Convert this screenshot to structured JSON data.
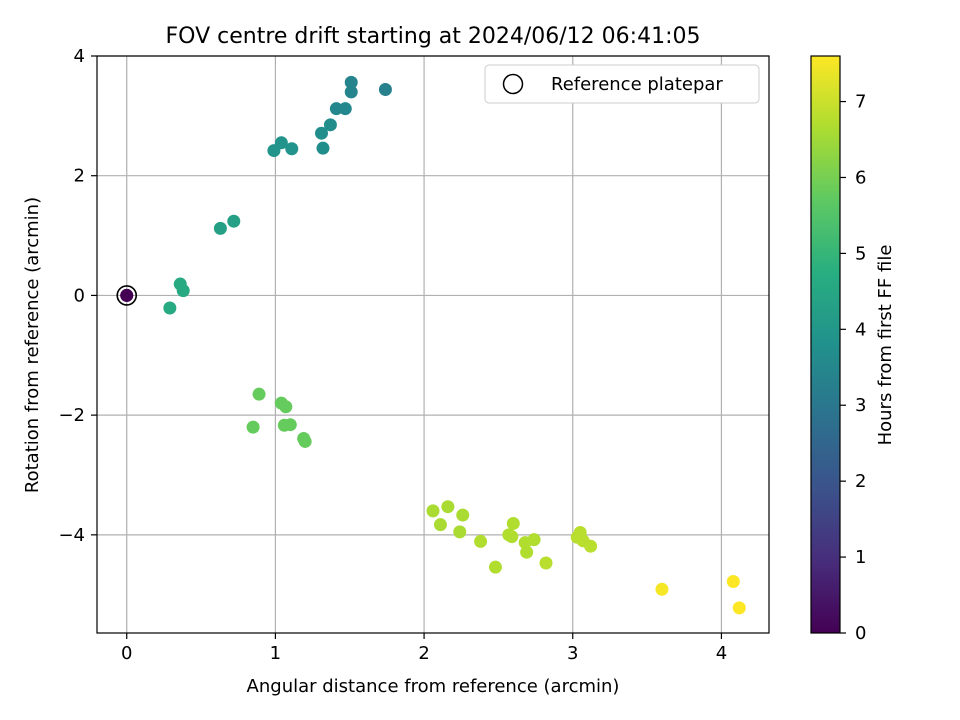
{
  "chart_data": {
    "type": "scatter",
    "title": "FOV centre drift starting at 2024/06/12 06:41:05",
    "xlabel": "Angular distance from reference (arcmin)",
    "ylabel": "Rotation from reference (arcmin)",
    "xlim": [
      -0.2,
      4.32
    ],
    "ylim": [
      -5.64,
      4.0
    ],
    "xticks": [
      0,
      1,
      2,
      3,
      4
    ],
    "yticks": [
      -4,
      -2,
      0,
      2,
      4
    ],
    "xtick_labels": [
      "0",
      "1",
      "2",
      "3",
      "4"
    ],
    "ytick_labels": [
      "−4",
      "−2",
      "0",
      "2",
      "4"
    ],
    "grid": true,
    "legend": {
      "placement": "top-right",
      "entries": [
        "Reference platepar"
      ]
    },
    "reference_point": {
      "x": 0,
      "y": 0,
      "hours": 0
    },
    "colorbar": {
      "label": "Hours from first FF file",
      "range": [
        0,
        7.6
      ],
      "ticks": [
        0,
        1,
        2,
        3,
        4,
        5,
        6,
        7
      ],
      "tick_labels": [
        "0",
        "1",
        "2",
        "3",
        "4",
        "5",
        "6",
        "7"
      ],
      "colormap": "viridis"
    },
    "series": [
      {
        "points": [
          {
            "x": 0.0,
            "y": 0.0,
            "h": 0.0
          },
          {
            "x": 0.29,
            "y": -0.21,
            "h": 4.6
          },
          {
            "x": 0.36,
            "y": 0.19,
            "h": 4.6
          },
          {
            "x": 0.38,
            "y": 0.08,
            "h": 4.6
          },
          {
            "x": 0.63,
            "y": 1.12,
            "h": 4.3
          },
          {
            "x": 0.72,
            "y": 1.24,
            "h": 4.3
          },
          {
            "x": 0.99,
            "y": 2.42,
            "h": 3.9
          },
          {
            "x": 1.04,
            "y": 2.55,
            "h": 3.9
          },
          {
            "x": 1.11,
            "y": 2.45,
            "h": 3.9
          },
          {
            "x": 1.31,
            "y": 2.71,
            "h": 3.7
          },
          {
            "x": 1.32,
            "y": 2.46,
            "h": 3.7
          },
          {
            "x": 1.37,
            "y": 2.85,
            "h": 3.7
          },
          {
            "x": 1.41,
            "y": 3.12,
            "h": 3.5
          },
          {
            "x": 1.47,
            "y": 3.12,
            "h": 3.5
          },
          {
            "x": 1.51,
            "y": 3.56,
            "h": 3.4
          },
          {
            "x": 1.51,
            "y": 3.4,
            "h": 3.4
          },
          {
            "x": 1.74,
            "y": 3.44,
            "h": 3.3
          },
          {
            "x": 0.89,
            "y": -1.65,
            "h": 5.8
          },
          {
            "x": 0.85,
            "y": -2.2,
            "h": 5.8
          },
          {
            "x": 1.04,
            "y": -1.8,
            "h": 5.8
          },
          {
            "x": 1.06,
            "y": -2.17,
            "h": 5.8
          },
          {
            "x": 1.07,
            "y": -1.86,
            "h": 5.8
          },
          {
            "x": 1.1,
            "y": -2.16,
            "h": 5.8
          },
          {
            "x": 1.19,
            "y": -2.39,
            "h": 5.8
          },
          {
            "x": 1.2,
            "y": -2.44,
            "h": 5.8
          },
          {
            "x": 2.06,
            "y": -3.6,
            "h": 6.6
          },
          {
            "x": 2.11,
            "y": -3.83,
            "h": 6.6
          },
          {
            "x": 2.16,
            "y": -3.53,
            "h": 6.6
          },
          {
            "x": 2.24,
            "y": -3.95,
            "h": 6.6
          },
          {
            "x": 2.26,
            "y": -3.67,
            "h": 6.6
          },
          {
            "x": 2.38,
            "y": -4.11,
            "h": 6.7
          },
          {
            "x": 2.48,
            "y": -4.54,
            "h": 6.7
          },
          {
            "x": 2.57,
            "y": -4.0,
            "h": 6.7
          },
          {
            "x": 2.59,
            "y": -4.03,
            "h": 6.7
          },
          {
            "x": 2.6,
            "y": -3.81,
            "h": 6.7
          },
          {
            "x": 2.68,
            "y": -4.13,
            "h": 6.7
          },
          {
            "x": 2.69,
            "y": -4.29,
            "h": 6.7
          },
          {
            "x": 2.74,
            "y": -4.08,
            "h": 6.7
          },
          {
            "x": 2.82,
            "y": -4.47,
            "h": 6.8
          },
          {
            "x": 3.03,
            "y": -4.04,
            "h": 6.8
          },
          {
            "x": 3.05,
            "y": -3.96,
            "h": 6.8
          },
          {
            "x": 3.07,
            "y": -4.1,
            "h": 6.8
          },
          {
            "x": 3.12,
            "y": -4.19,
            "h": 6.8
          },
          {
            "x": 3.6,
            "y": -4.91,
            "h": 7.5
          },
          {
            "x": 4.08,
            "y": -4.78,
            "h": 7.6
          },
          {
            "x": 4.12,
            "y": -5.22,
            "h": 7.6
          }
        ]
      }
    ]
  }
}
